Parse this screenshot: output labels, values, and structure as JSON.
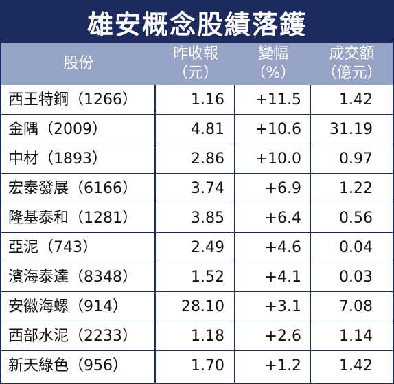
{
  "title": "雄安概念股績落鑊",
  "headers": [
    {
      "line1": "股份",
      "line2": ""
    },
    {
      "line1": "昨收報",
      "line2": "（元）"
    },
    {
      "line1": "變幅",
      "line2": "（%）"
    },
    {
      "line1": "成交額",
      "line2": "（億元）"
    }
  ],
  "rows": [
    {
      "stock": "西王特鋼（1266）",
      "close": "1.16",
      "change": "+11.5",
      "turnover": "1.42"
    },
    {
      "stock": "金隅（2009）",
      "close": "4.81",
      "change": "+10.6",
      "turnover": "31.19"
    },
    {
      "stock": "中材（1893）",
      "close": "2.86",
      "change": "+10.0",
      "turnover": "0.97"
    },
    {
      "stock": "宏泰發展（6166）",
      "close": "3.74",
      "change": "+6.9",
      "turnover": "1.22"
    },
    {
      "stock": "隆基泰和（1281）",
      "close": "3.85",
      "change": "+6.4",
      "turnover": "0.56"
    },
    {
      "stock": "亞泥（743）",
      "close": "2.49",
      "change": "+4.6",
      "turnover": "0.04"
    },
    {
      "stock": "濱海泰達（8348）",
      "close": "1.52",
      "change": "+4.1",
      "turnover": "0.03"
    },
    {
      "stock": "安徽海螺（914）",
      "close": "28.10",
      "change": "+3.1",
      "turnover": "7.08"
    },
    {
      "stock": "西部水泥（2233）",
      "close": "1.18",
      "change": "+2.6",
      "turnover": "1.14"
    },
    {
      "stock": "新天綠色（956）",
      "close": "1.70",
      "change": "+1.2",
      "turnover": "1.42"
    }
  ],
  "colors": {
    "title_bg": "#1d2a5e",
    "header_bg": "#97a3c5",
    "border": "#1d2a5e"
  }
}
